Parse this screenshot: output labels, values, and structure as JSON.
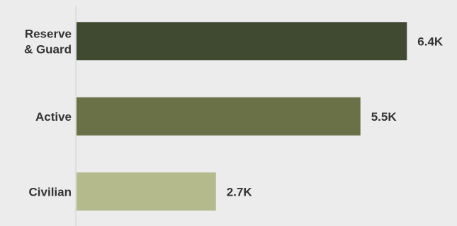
{
  "chart_data": {
    "type": "bar",
    "orientation": "horizontal",
    "categories": [
      [
        "Reserve",
        "& Guard"
      ],
      [
        "Active"
      ],
      [
        "Civilian"
      ]
    ],
    "values": [
      6400,
      5500,
      2700
    ],
    "value_labels": [
      "6.4K",
      "5.5K",
      "2.7K"
    ],
    "colors": [
      "#3f4a30",
      "#6a7146",
      "#b4ba8c"
    ],
    "axis_color": "#cfcfcf",
    "xlim": [
      0,
      7000
    ],
    "grid": false,
    "legend": "none"
  }
}
